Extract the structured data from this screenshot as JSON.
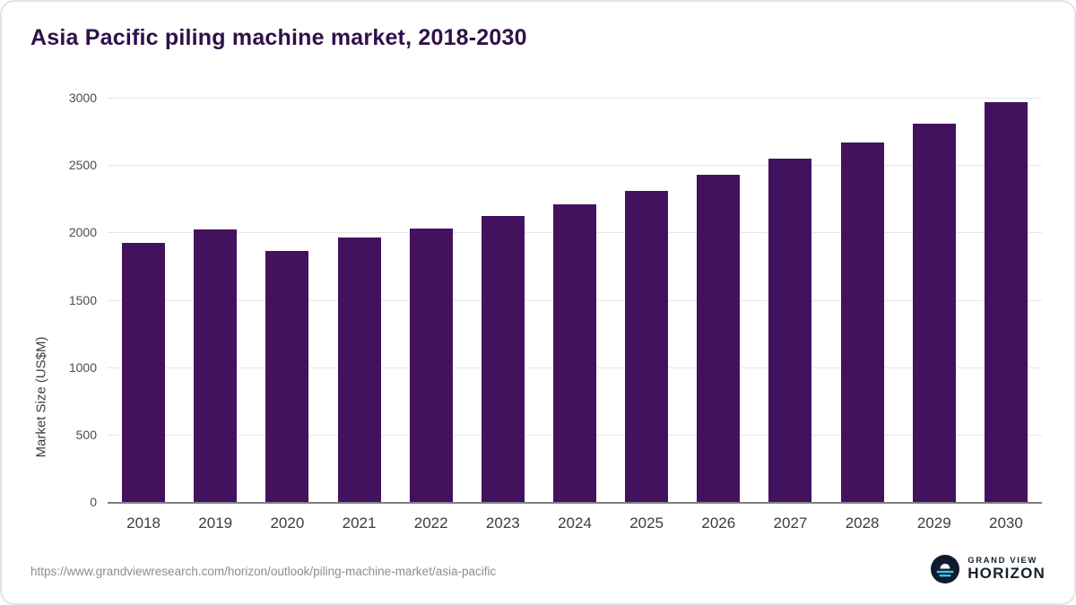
{
  "chart_data": {
    "type": "bar",
    "title": "Asia Pacific piling machine market, 2018-2030",
    "xlabel": "",
    "ylabel": "Market Size (US$M)",
    "categories": [
      "2018",
      "2019",
      "2020",
      "2021",
      "2022",
      "2023",
      "2024",
      "2025",
      "2026",
      "2027",
      "2028",
      "2029",
      "2030"
    ],
    "values": [
      1920,
      2020,
      1860,
      1960,
      2030,
      2120,
      2210,
      2310,
      2430,
      2550,
      2670,
      2810,
      2970
    ],
    "ylim": [
      0,
      3000
    ],
    "yticks": [
      0,
      500,
      1000,
      1500,
      2000,
      2500,
      3000
    ],
    "grid": "horizontal",
    "legend": "none",
    "bar_color": "#43125f",
    "title_color": "#311049"
  },
  "footer": {
    "source_url": "https://www.grandviewresearch.com/horizon/outlook/piling-machine-market/asia-pacific",
    "logo": {
      "line1": "GRAND VIEW",
      "line2": "HORIZON",
      "icon": "horizon-sun-circle",
      "navy": "#0f1c2e",
      "cyan": "#3ec6e0"
    }
  }
}
